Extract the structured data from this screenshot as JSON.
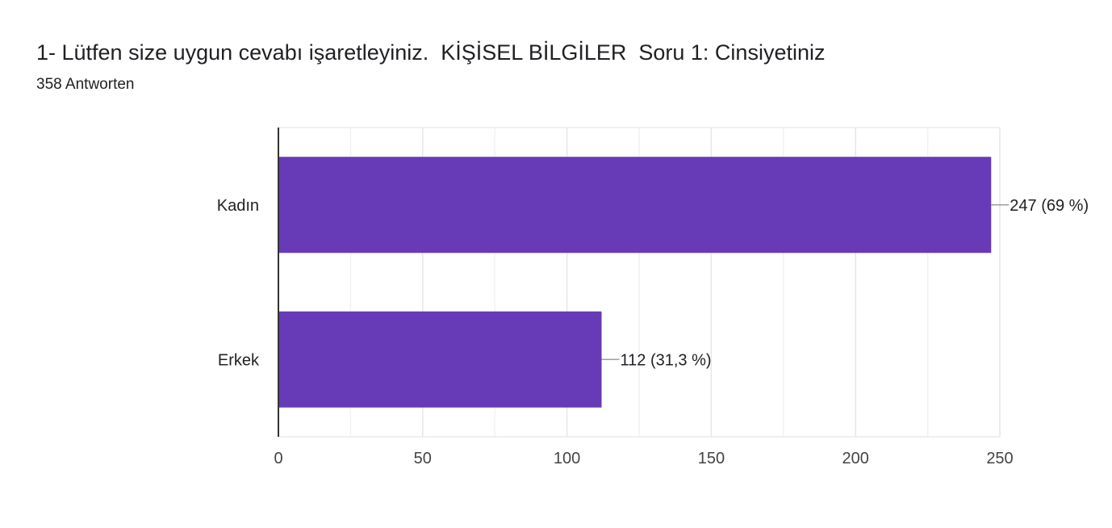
{
  "question": {
    "title": "1- Lütfen size uygun cevabı işaretleyiniz.  KİŞİSEL BİLGİLER  Soru 1: Cinsiyetiniz",
    "response_count": "358 Antworten"
  },
  "colors": {
    "bar": "#673ab7",
    "grid": "#ececec",
    "axis": "#333333",
    "leader": "#9e9e9e"
  },
  "chart_data": {
    "type": "bar",
    "orientation": "horizontal",
    "categories": [
      "Kadın",
      "Erkek"
    ],
    "values": [
      247,
      112
    ],
    "data_labels": [
      "247 (69 %)",
      "112 (31,3 %)"
    ],
    "xlim": [
      0,
      250
    ],
    "xticks": [
      0,
      50,
      100,
      150,
      200,
      250
    ],
    "grid": true
  }
}
